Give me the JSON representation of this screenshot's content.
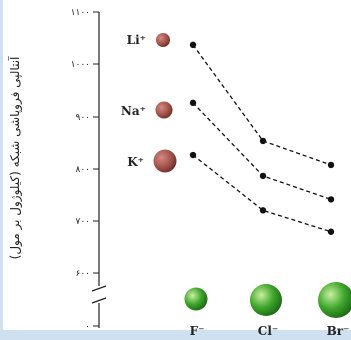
{
  "chart_data": {
    "type": "line",
    "ylabel": "آنتالپی فروپاشی شبکه (کیلوژول بر مول)",
    "yticks": [
      "۱۱۰۰",
      "۱۰۰۰",
      "۹۰۰",
      "۸۰۰",
      "۷۰۰",
      "۶۰۰",
      "۰"
    ],
    "ylim": [
      600,
      1100
    ],
    "categories": [
      "F⁻",
      "Cl⁻",
      "Br⁻"
    ],
    "series": [
      {
        "name": "Li⁺",
        "values": [
          1037,
          853,
          807
        ]
      },
      {
        "name": "Na⁺",
        "values": [
          926,
          786,
          741
        ]
      },
      {
        "name": "K⁺",
        "values": [
          826,
          720,
          679
        ]
      }
    ],
    "axis_break": true,
    "grid": false,
    "colors": {
      "cation": "#a3544c",
      "anion": "#3fa62c",
      "border": "#cfe0f1"
    }
  }
}
